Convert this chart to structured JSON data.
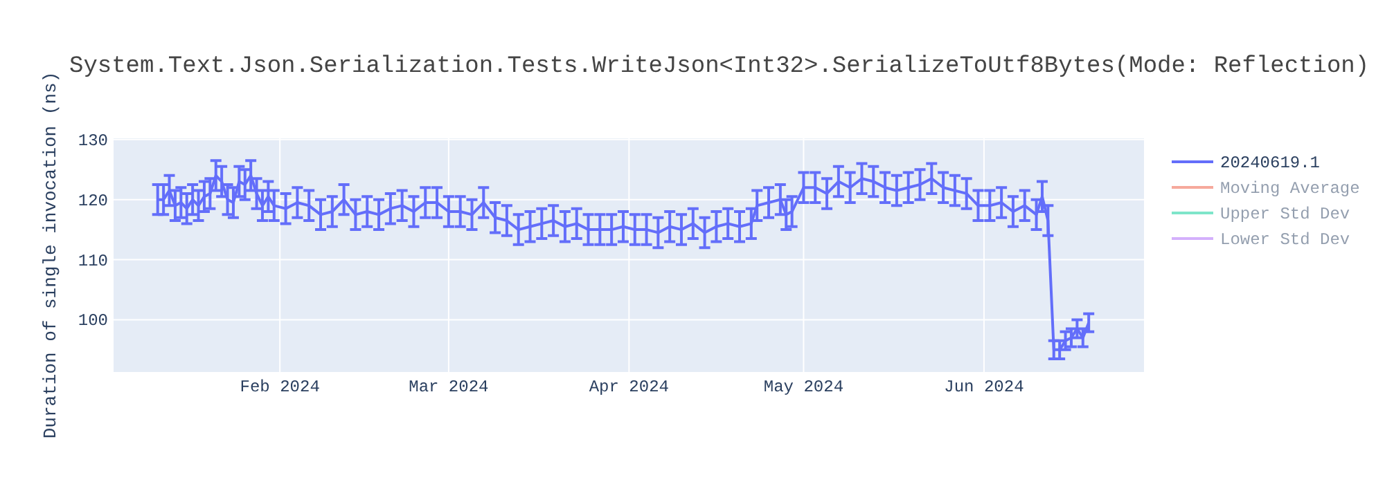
{
  "chart_data": {
    "type": "line",
    "title": "System.Text.Json.Serialization.Tests.WriteJson<Int32>.SerializeToUtf8Bytes(Mode: Reflection)",
    "ylabel": "Duration of single invocation (ns)",
    "x": [
      "2024-01-11",
      "2024-01-12",
      "2024-01-13",
      "2024-01-14",
      "2024-01-15",
      "2024-01-16",
      "2024-01-17",
      "2024-01-18",
      "2024-01-19",
      "2024-01-20",
      "2024-01-21",
      "2024-01-22",
      "2024-01-23",
      "2024-01-24",
      "2024-01-25",
      "2024-01-26",
      "2024-01-27",
      "2024-01-28",
      "2024-01-29",
      "2024-01-30",
      "2024-01-31",
      "2024-02-02",
      "2024-02-04",
      "2024-02-06",
      "2024-02-08",
      "2024-02-10",
      "2024-02-12",
      "2024-02-14",
      "2024-02-16",
      "2024-02-18",
      "2024-02-20",
      "2024-02-22",
      "2024-02-24",
      "2024-02-26",
      "2024-02-28",
      "2024-03-01",
      "2024-03-03",
      "2024-03-05",
      "2024-03-07",
      "2024-03-09",
      "2024-03-11",
      "2024-03-13",
      "2024-03-15",
      "2024-03-17",
      "2024-03-19",
      "2024-03-21",
      "2024-03-23",
      "2024-03-25",
      "2024-03-27",
      "2024-03-29",
      "2024-03-31",
      "2024-04-02",
      "2024-04-04",
      "2024-04-06",
      "2024-04-08",
      "2024-04-10",
      "2024-04-12",
      "2024-04-14",
      "2024-04-16",
      "2024-04-18",
      "2024-04-20",
      "2024-04-22",
      "2024-04-23",
      "2024-04-25",
      "2024-04-27",
      "2024-04-28",
      "2024-04-29",
      "2024-05-01",
      "2024-05-03",
      "2024-05-05",
      "2024-05-07",
      "2024-05-09",
      "2024-05-11",
      "2024-05-13",
      "2024-05-15",
      "2024-05-17",
      "2024-05-19",
      "2024-05-21",
      "2024-05-23",
      "2024-05-25",
      "2024-05-27",
      "2024-05-29",
      "2024-05-31",
      "2024-06-02",
      "2024-06-04",
      "2024-06-06",
      "2024-06-08",
      "2024-06-10",
      "2024-06-11",
      "2024-06-12",
      "2024-06-13",
      "2024-06-14",
      "2024-06-15",
      "2024-06-16",
      "2024-06-17",
      "2024-06-18",
      "2024-06-19"
    ],
    "series": [
      {
        "name": "20240619.1",
        "color": "#636efa",
        "values": [
          120,
          120,
          121.5,
          119,
          119.5,
          118.5,
          120,
          119,
          120.5,
          121,
          124,
          123,
          120,
          119.5,
          123,
          122.5,
          124,
          121,
          119,
          120.5,
          119,
          118.5,
          119.5,
          119,
          117.5,
          118,
          120,
          117.5,
          118,
          117.5,
          118.5,
          119,
          118,
          119.5,
          119.5,
          118,
          118,
          117.5,
          119.5,
          117,
          116.5,
          115,
          115.5,
          116,
          116.5,
          115.5,
          116,
          115,
          115,
          115,
          115.5,
          115,
          115,
          114.5,
          115.5,
          115,
          116,
          114.5,
          115.5,
          116,
          115.5,
          116,
          119,
          119.5,
          120,
          117.5,
          118,
          122,
          122,
          121,
          123,
          122,
          123.5,
          123,
          122,
          121.5,
          122,
          122.5,
          123.5,
          122,
          121.5,
          121,
          119,
          119,
          119.5,
          118,
          119,
          117.5,
          120.5,
          116.5,
          95,
          95,
          96.5,
          97,
          98.5,
          97,
          99.5
        ],
        "errors": [
          2.5,
          2.5,
          2.5,
          2.5,
          2.5,
          2.5,
          2.5,
          2.5,
          2.5,
          2.5,
          2.5,
          2.5,
          2.5,
          2.5,
          2.5,
          2.5,
          2.5,
          2.5,
          2.5,
          2.5,
          2.5,
          2.5,
          2.5,
          2.5,
          2.5,
          2.5,
          2.5,
          2.5,
          2.5,
          2.5,
          2.5,
          2.5,
          2.5,
          2.5,
          2.5,
          2.5,
          2.5,
          2.5,
          2.5,
          2.5,
          2.5,
          2.5,
          2.5,
          2.5,
          2.5,
          2.5,
          2.5,
          2.5,
          2.5,
          2.5,
          2.5,
          2.5,
          2.5,
          2.5,
          2.5,
          2.5,
          2.5,
          2.5,
          2.5,
          2.5,
          2.5,
          2.5,
          2.5,
          2.5,
          2.5,
          2.5,
          2.5,
          2.5,
          2.5,
          2.5,
          2.5,
          2.5,
          2.5,
          2.5,
          2.5,
          2.5,
          2.5,
          2.5,
          2.5,
          2.5,
          2.5,
          2.5,
          2.5,
          2.5,
          2.5,
          2.5,
          2.5,
          2.5,
          2.5,
          2.5,
          1.5,
          1.5,
          1.5,
          1.5,
          1.5,
          1.5,
          1.5
        ]
      },
      {
        "name": "Moving Average",
        "color": "#ef553b",
        "values": [
          null,
          null,
          null,
          null,
          null,
          null,
          null,
          null,
          null,
          null,
          null,
          null,
          null,
          null,
          null,
          null,
          null,
          null,
          null,
          null,
          null,
          null,
          null,
          null,
          null,
          null,
          null,
          null,
          null,
          null,
          null,
          null,
          null,
          null,
          null,
          null,
          null,
          null,
          null,
          null,
          null,
          null,
          null,
          null,
          null,
          null,
          null,
          null,
          null,
          null,
          null,
          null,
          null,
          null,
          null,
          null,
          null,
          null,
          null,
          null,
          null,
          null,
          null,
          null,
          null,
          null,
          null,
          null,
          null,
          null,
          null,
          null,
          null,
          null,
          null,
          null,
          null,
          null,
          null,
          null,
          null,
          null,
          null,
          null,
          null,
          null,
          null,
          null,
          null,
          null,
          null,
          null,
          null,
          null,
          null,
          null,
          null
        ]
      },
      {
        "name": "Upper Std Dev",
        "color": "#00cc96",
        "values": [
          null,
          null,
          null,
          null,
          null,
          null,
          null,
          null,
          null,
          null,
          null,
          null,
          null,
          null,
          null,
          null,
          null,
          null,
          null,
          null,
          null,
          null,
          null,
          null,
          null,
          null,
          null,
          null,
          null,
          null,
          null,
          null,
          null,
          null,
          null,
          null,
          null,
          null,
          null,
          null,
          null,
          null,
          null,
          null,
          null,
          null,
          null,
          null,
          null,
          null,
          null,
          null,
          null,
          null,
          null,
          null,
          null,
          null,
          null,
          null,
          null,
          null,
          null,
          null,
          null,
          null,
          null,
          null,
          null,
          null,
          null,
          null,
          null,
          null,
          null,
          null,
          null,
          null,
          null,
          null,
          null,
          null,
          null,
          null,
          null,
          null,
          null,
          null,
          null,
          null,
          null,
          null,
          null,
          null,
          null,
          null,
          null
        ]
      },
      {
        "name": "Lower Std Dev",
        "color": "#ab63fa",
        "values": [
          null,
          null,
          null,
          null,
          null,
          null,
          null,
          null,
          null,
          null,
          null,
          null,
          null,
          null,
          null,
          null,
          null,
          null,
          null,
          null,
          null,
          null,
          null,
          null,
          null,
          null,
          null,
          null,
          null,
          null,
          null,
          null,
          null,
          null,
          null,
          null,
          null,
          null,
          null,
          null,
          null,
          null,
          null,
          null,
          null,
          null,
          null,
          null,
          null,
          null,
          null,
          null,
          null,
          null,
          null,
          null,
          null,
          null,
          null,
          null,
          null,
          null,
          null,
          null,
          null,
          null,
          null,
          null,
          null,
          null,
          null,
          null,
          null,
          null,
          null,
          null,
          null,
          null,
          null,
          null,
          null,
          null,
          null,
          null,
          null,
          null,
          null,
          null,
          null,
          null,
          null,
          null,
          null,
          null,
          null,
          null,
          null
        ]
      }
    ],
    "xlim": [
      "2024-01-03T10:00",
      "2024-06-28T12:00"
    ],
    "xticks": [
      {
        "value": "2024-02-01",
        "label": "Feb 2024"
      },
      {
        "value": "2024-03-01",
        "label": "Mar 2024"
      },
      {
        "value": "2024-04-01",
        "label": "Apr 2024"
      },
      {
        "value": "2024-05-01",
        "label": "May 2024"
      },
      {
        "value": "2024-06-01",
        "label": "Jun 2024"
      }
    ],
    "ylim": [
      91.3,
      130.2
    ],
    "yticks": [
      100,
      110,
      120,
      130
    ],
    "grid": true,
    "legend": "right"
  }
}
